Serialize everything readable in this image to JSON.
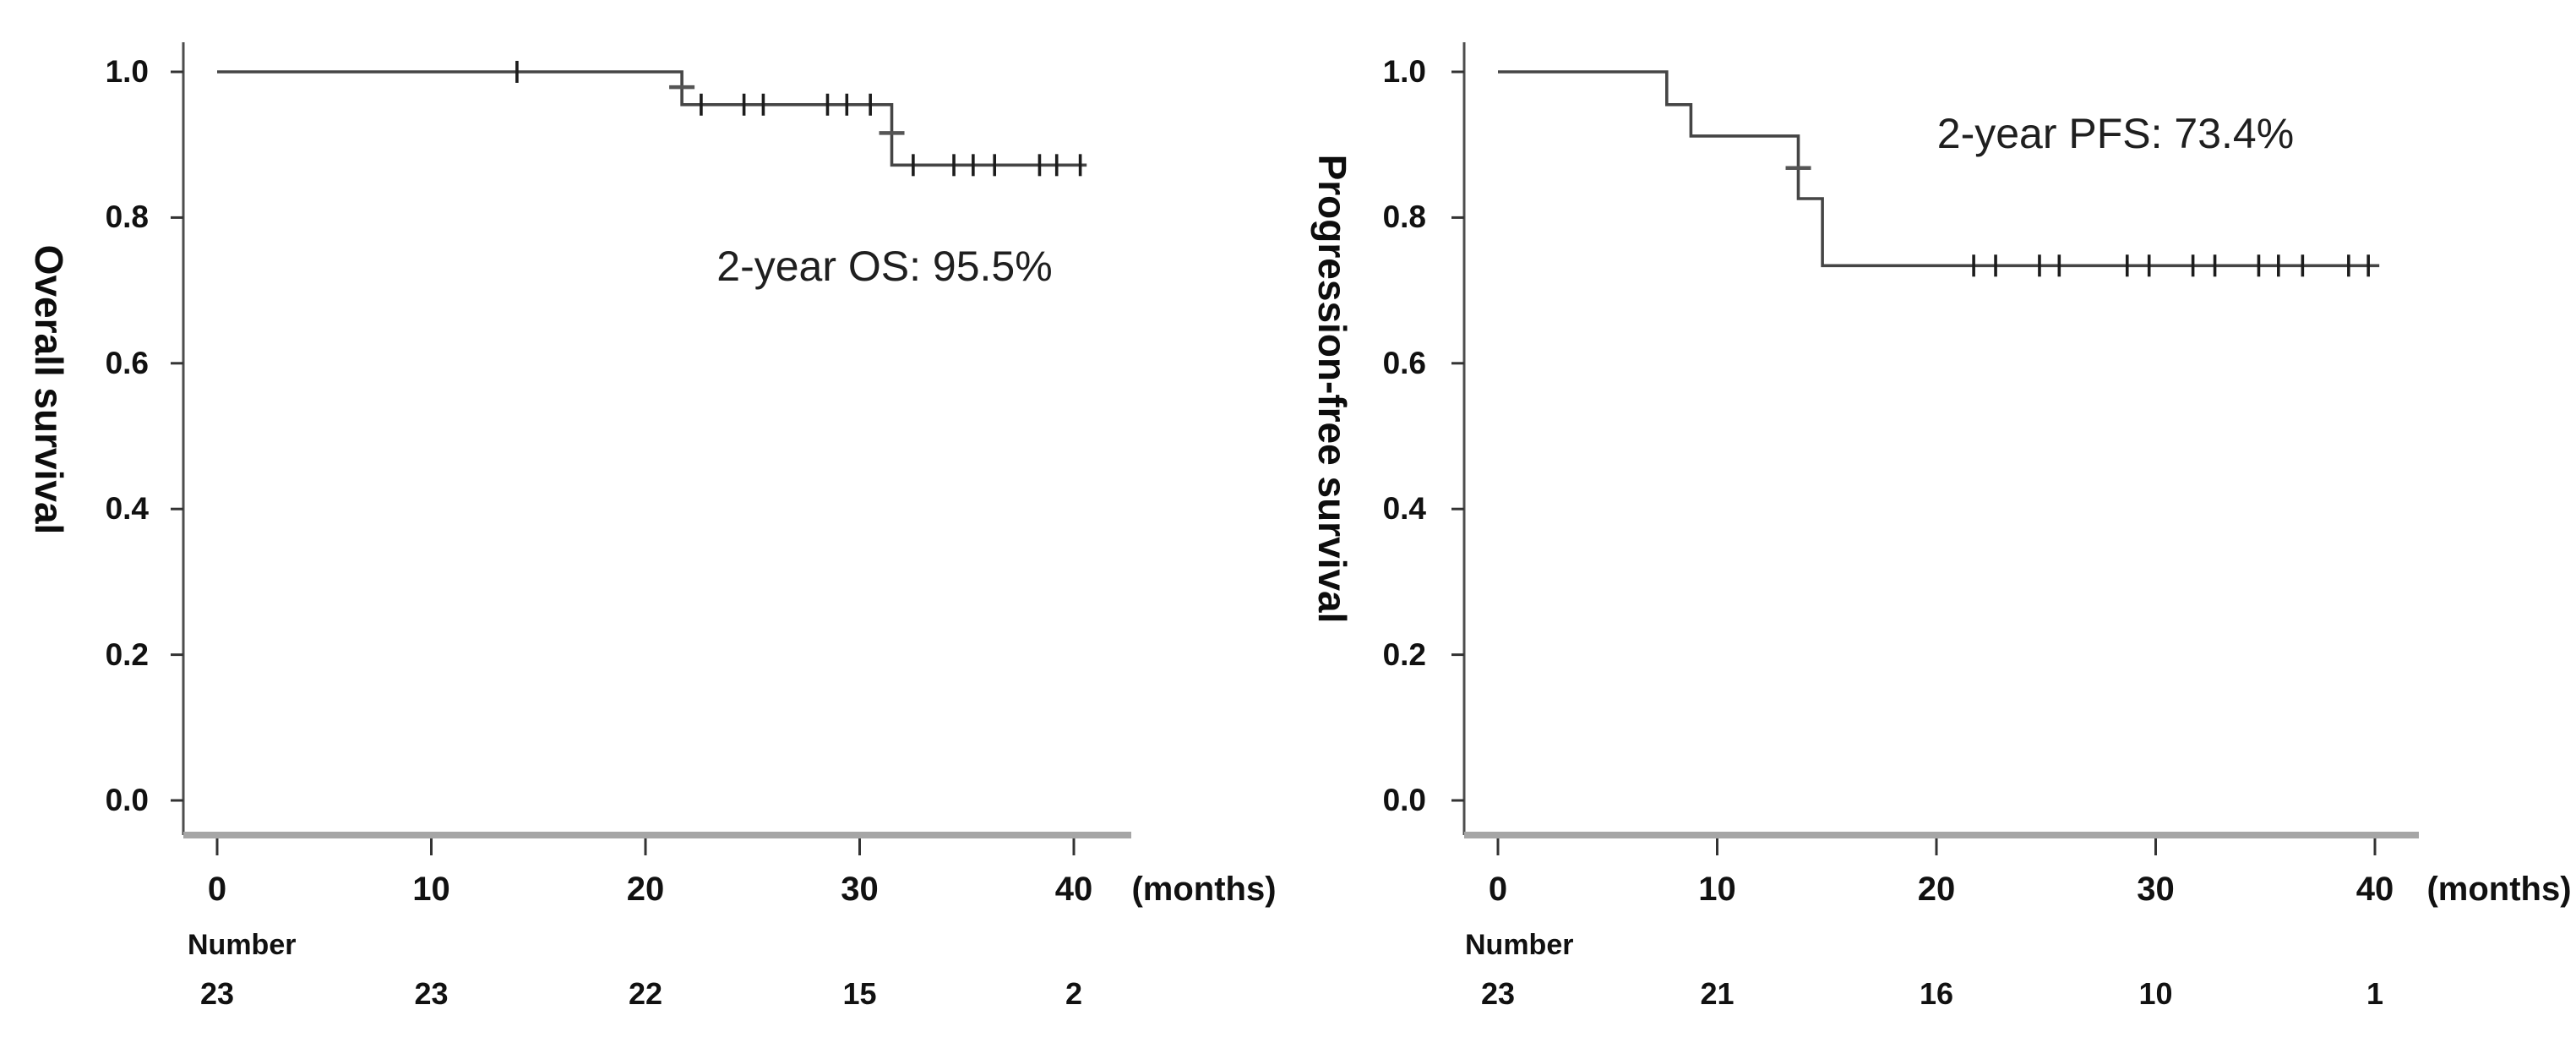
{
  "figure": {
    "background_color": "#ffffff",
    "text_color": "#111111",
    "curve_color": "#454545",
    "censor_color": "#1c1c1c",
    "axis_color": "#4d4d4d",
    "baseline_color": "#a6a6a6"
  },
  "chart_data": [
    {
      "type": "line",
      "subtype": "kaplan-meier-step",
      "ylabel": "Overall survival",
      "xlabel": "(months)",
      "annotation": "2-year OS: 95.5%",
      "x_ticks": [
        "0",
        "10",
        "20",
        "30",
        "40"
      ],
      "x_tick_values": [
        0,
        10,
        20,
        30,
        40
      ],
      "y_ticks": [
        "1.0",
        "0.8",
        "0.6",
        "0.4",
        "0.2",
        "0.0"
      ],
      "y_tick_values": [
        1.0,
        0.8,
        0.6,
        0.4,
        0.2,
        0.0
      ],
      "xlim": [
        0,
        42
      ],
      "ylim": [
        0.0,
        1.05
      ],
      "grid": false,
      "steps": [
        {
          "t": 0,
          "s": 1.0
        },
        {
          "t": 21.7,
          "s": 1.0
        },
        {
          "t": 21.7,
          "s": 0.955
        },
        {
          "t": 31.5,
          "s": 0.955
        },
        {
          "t": 31.5,
          "s": 0.872
        },
        {
          "t": 40.6,
          "s": 0.872
        }
      ],
      "censor_marks": [
        {
          "t": 14.0,
          "s": 1.0
        },
        {
          "t": 22.6,
          "s": 0.955
        },
        {
          "t": 24.6,
          "s": 0.955
        },
        {
          "t": 25.5,
          "s": 0.955
        },
        {
          "t": 28.5,
          "s": 0.955
        },
        {
          "t": 29.4,
          "s": 0.955
        },
        {
          "t": 30.5,
          "s": 0.955
        },
        {
          "t": 32.5,
          "s": 0.872
        },
        {
          "t": 34.4,
          "s": 0.872
        },
        {
          "t": 35.3,
          "s": 0.872
        },
        {
          "t": 36.3,
          "s": 0.872
        },
        {
          "t": 38.4,
          "s": 0.872
        },
        {
          "t": 39.2,
          "s": 0.872
        },
        {
          "t": 40.3,
          "s": 0.872
        }
      ],
      "censor_marks_on_drop": [
        {
          "t": 21.7,
          "s": 0.979
        },
        {
          "t": 31.5,
          "s": 0.916
        }
      ],
      "risk_label": "Number",
      "risk_times": [
        0,
        10,
        20,
        30,
        40
      ],
      "risk_counts": [
        "23",
        "23",
        "22",
        "15",
        "2"
      ]
    },
    {
      "type": "line",
      "subtype": "kaplan-meier-step",
      "ylabel": "Progression-free survival",
      "xlabel": "(months)",
      "annotation": "2-year PFS: 73.4%",
      "x_ticks": [
        "0",
        "10",
        "20",
        "30",
        "40"
      ],
      "x_tick_values": [
        0,
        10,
        20,
        30,
        40
      ],
      "y_ticks": [
        "1.0",
        "0.8",
        "0.6",
        "0.4",
        "0.2",
        "0.0"
      ],
      "y_tick_values": [
        1.0,
        0.8,
        0.6,
        0.4,
        0.2,
        0.0
      ],
      "xlim": [
        0,
        42
      ],
      "ylim": [
        0.0,
        1.05
      ],
      "grid": false,
      "steps": [
        {
          "t": 0,
          "s": 1.0
        },
        {
          "t": 7.7,
          "s": 1.0
        },
        {
          "t": 7.7,
          "s": 0.955
        },
        {
          "t": 8.8,
          "s": 0.955
        },
        {
          "t": 8.8,
          "s": 0.912
        },
        {
          "t": 13.7,
          "s": 0.912
        },
        {
          "t": 13.7,
          "s": 0.826
        },
        {
          "t": 14.8,
          "s": 0.826
        },
        {
          "t": 14.8,
          "s": 0.734
        },
        {
          "t": 40.2,
          "s": 0.734
        }
      ],
      "censor_marks": [
        {
          "t": 21.7,
          "s": 0.734
        },
        {
          "t": 22.7,
          "s": 0.734
        },
        {
          "t": 24.7,
          "s": 0.734
        },
        {
          "t": 25.6,
          "s": 0.734
        },
        {
          "t": 28.7,
          "s": 0.734
        },
        {
          "t": 29.7,
          "s": 0.734
        },
        {
          "t": 31.7,
          "s": 0.734
        },
        {
          "t": 32.7,
          "s": 0.734
        },
        {
          "t": 34.7,
          "s": 0.734
        },
        {
          "t": 35.6,
          "s": 0.734
        },
        {
          "t": 36.7,
          "s": 0.734
        },
        {
          "t": 38.8,
          "s": 0.734
        },
        {
          "t": 39.7,
          "s": 0.734
        }
      ],
      "censor_marks_on_drop": [
        {
          "t": 13.7,
          "s": 0.868
        }
      ],
      "risk_label": "Number",
      "risk_times": [
        0,
        10,
        20,
        30,
        40
      ],
      "risk_counts": [
        "23",
        "21",
        "16",
        "10",
        "1"
      ]
    }
  ]
}
